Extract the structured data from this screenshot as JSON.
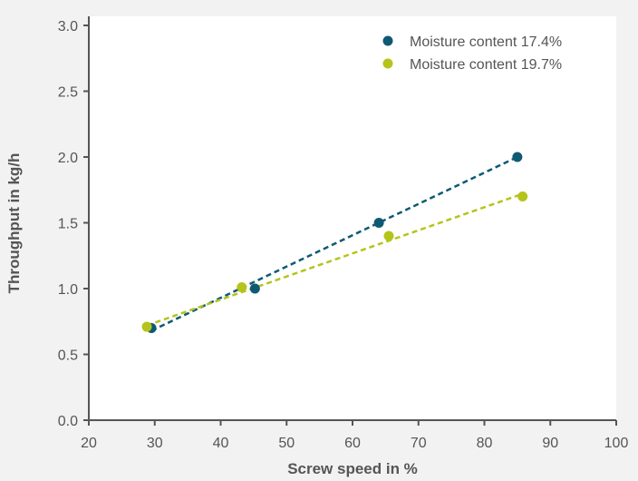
{
  "chart_data": {
    "type": "scatter",
    "title": "",
    "xlabel": "Screw speed in %",
    "ylabel": "Throughput in kg/h",
    "xlim": [
      20,
      100
    ],
    "ylim": [
      0,
      3.0
    ],
    "x_ticks": [
      "20",
      "30",
      "40",
      "50",
      "60",
      "70",
      "80",
      "90",
      "100"
    ],
    "y_ticks": [
      "0.0",
      "0.5",
      "1.0",
      "1.5",
      "2.0",
      "2.5",
      "3.0"
    ],
    "grid": false,
    "legend_position": "top-right",
    "series": [
      {
        "name": "Moisture content 17.4%",
        "color": "#0e5a72",
        "x": [
          29.5,
          45.2,
          64.0,
          85.0
        ],
        "y": [
          0.7,
          1.0,
          1.5,
          2.0
        ],
        "trendline": {
          "x": [
            29.5,
            85.0
          ],
          "y": [
            0.68,
            2.0
          ]
        }
      },
      {
        "name": "Moisture content 19.7%",
        "color": "#b5c41b",
        "x": [
          28.8,
          43.2,
          65.5,
          85.8
        ],
        "y": [
          0.71,
          1.01,
          1.4,
          1.7
        ],
        "trendline": {
          "x": [
            28.8,
            85.8
          ],
          "y": [
            0.72,
            1.72
          ]
        }
      }
    ]
  }
}
